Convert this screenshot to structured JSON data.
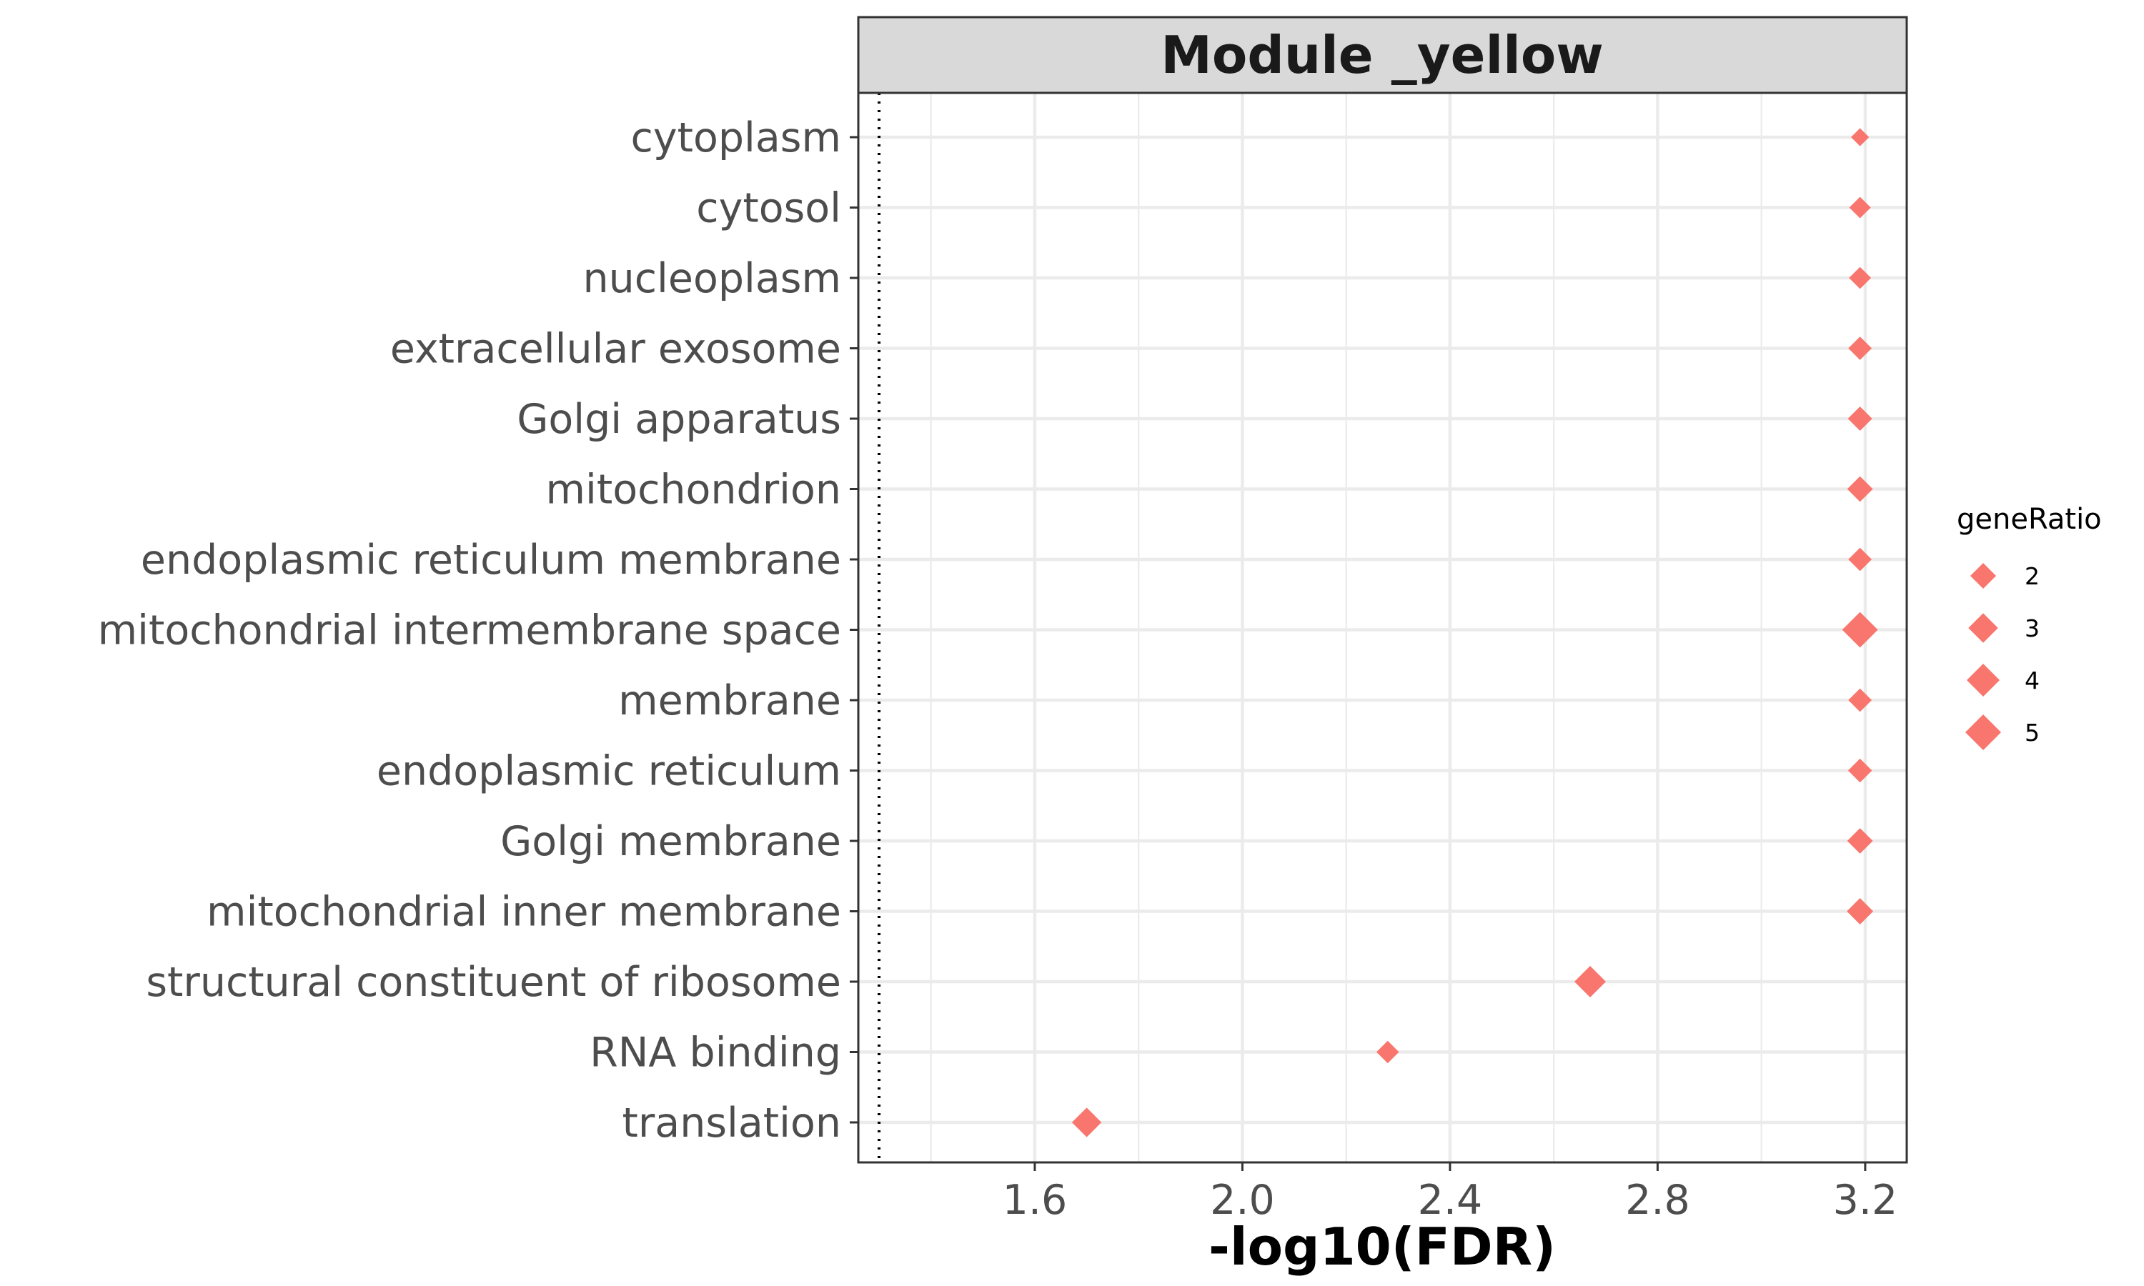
{
  "chart_data": {
    "type": "scatter",
    "title": "Module _yellow",
    "xlabel": "-log10(FDR)",
    "ylabel": "",
    "xlim": [
      1.26,
      3.28
    ],
    "xticks": [
      "1.6",
      "2.0",
      "2.4",
      "2.8",
      "3.2"
    ],
    "xtick_values": [
      1.6,
      2.0,
      2.4,
      2.8,
      3.2
    ],
    "reference_line_x": 1.3,
    "grid": true,
    "marker": "diamond",
    "color": "#F8766D",
    "categories": [
      "cytoplasm",
      "cytosol",
      "nucleoplasm",
      "extracellular exosome",
      "Golgi apparatus",
      "mitochondrion",
      "endoplasmic reticulum membrane",
      "mitochondrial intermembrane space",
      "membrane",
      "endoplasmic reticulum",
      "Golgi membrane",
      "mitochondrial inner membrane",
      "structural constituent of ribosome",
      "RNA binding",
      "translation"
    ],
    "points": [
      {
        "category": "cytoplasm",
        "x": 3.19,
        "geneRatio": 0.8
      },
      {
        "category": "cytosol",
        "x": 3.19,
        "geneRatio": 1.4
      },
      {
        "category": "nucleoplasm",
        "x": 3.19,
        "geneRatio": 1.5
      },
      {
        "category": "extracellular exosome",
        "x": 3.19,
        "geneRatio": 1.8
      },
      {
        "category": "Golgi apparatus",
        "x": 3.19,
        "geneRatio": 2.0
      },
      {
        "category": "mitochondrion",
        "x": 3.19,
        "geneRatio": 2.3
      },
      {
        "category": "endoplasmic reticulum membrane",
        "x": 3.19,
        "geneRatio": 1.8
      },
      {
        "category": "mitochondrial intermembrane space",
        "x": 3.19,
        "geneRatio": 5.5
      },
      {
        "category": "membrane",
        "x": 3.19,
        "geneRatio": 1.8
      },
      {
        "category": "endoplasmic reticulum",
        "x": 3.19,
        "geneRatio": 1.9
      },
      {
        "category": "Golgi membrane",
        "x": 3.19,
        "geneRatio": 2.3
      },
      {
        "category": "mitochondrial inner membrane",
        "x": 3.19,
        "geneRatio": 2.5
      },
      {
        "category": "structural constituent of ribosome",
        "x": 2.67,
        "geneRatio": 4.0
      },
      {
        "category": "RNA binding",
        "x": 2.28,
        "geneRatio": 1.6
      },
      {
        "category": "translation",
        "x": 1.7,
        "geneRatio": 3.4
      }
    ],
    "legend": {
      "title": "geneRatio",
      "position": "right",
      "items": [
        {
          "label": "2",
          "value": 2
        },
        {
          "label": "3",
          "value": 3
        },
        {
          "label": "4",
          "value": 4
        },
        {
          "label": "5",
          "value": 5
        }
      ]
    }
  }
}
